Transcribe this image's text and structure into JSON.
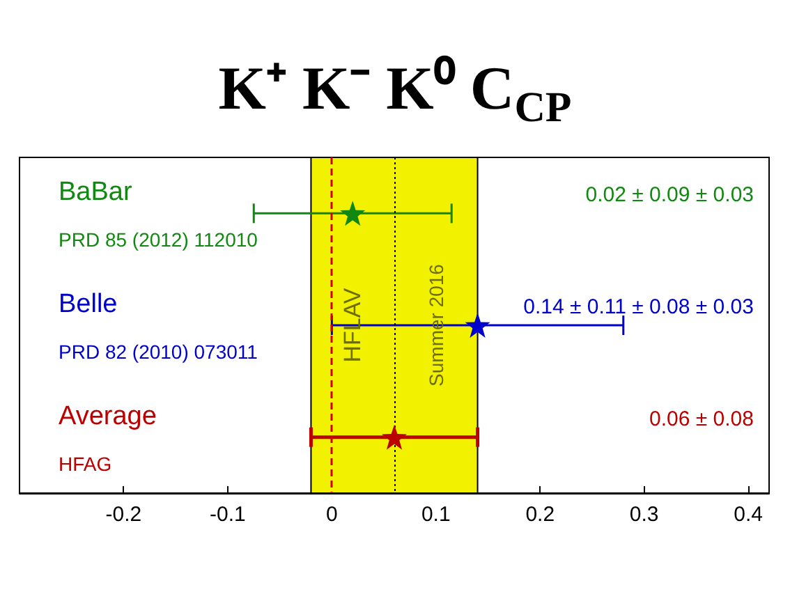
{
  "chart_data": {
    "type": "scatter",
    "title": "K⁺ K⁻ K⁰ C$_{CP}$",
    "orientation": "horizontal",
    "categories": [
      null,
      null,
      null
    ],
    "series": [
      {
        "name": "BaBar",
        "color": "#118811",
        "values": [
          0.02,
          null,
          null
        ],
        "errors": [
          0.095,
          null,
          null
        ]
      },
      {
        "name": "Belle",
        "color": "#0000cc",
        "values": [
          null,
          0.14,
          null
        ],
        "errors": [
          null,
          0.14,
          null
        ]
      },
      {
        "name": "Average",
        "color": "#bb0000",
        "values": [
          null,
          null,
          0.06
        ],
        "errors": [
          null,
          null,
          0.08
        ]
      }
    ],
    "xlim": [
      -0.3,
      0.42
    ],
    "xticks": [
      -0.2,
      -0.1,
      0,
      0.1,
      0.2,
      0.3,
      0.4
    ],
    "bands": [
      {
        "axis": "x",
        "from": -0.02,
        "to": 0.14,
        "color": "#f2f200",
        "label": "HFLAV"
      }
    ],
    "ref_lines": [
      {
        "axis": "x",
        "value": 0,
        "color": "#cc0000",
        "line_style": "dashed"
      },
      {
        "axis": "x",
        "value": 0.06,
        "color": "#000000",
        "line_style": "dotted",
        "label": "Summer 2016"
      }
    ],
    "annotations": [
      "PRD 85 (2012) 112010",
      "PRD 82 (2010) 073011",
      "HFAG",
      "0.02 ± 0.09 ± 0.03",
      "0.14 ± 0.11 ± 0.08 ± 0.03",
      "0.06 ± 0.08"
    ],
    "marker": "star",
    "legend": false,
    "grid": false,
    "tick_labels": "x"
  }
}
